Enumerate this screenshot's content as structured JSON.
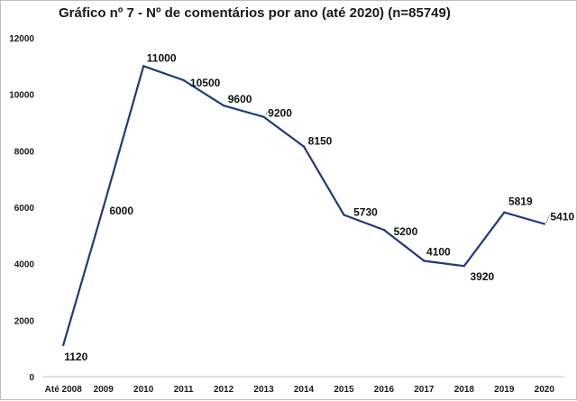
{
  "chart_data": {
    "type": "line",
    "title": "Gráfico nº 7  - Nº de comentários por ano (até 2020) (n=85749)",
    "categories": [
      "Até 2008",
      "2009",
      "2010",
      "2011",
      "2012",
      "2013",
      "2014",
      "2015",
      "2016",
      "2017",
      "2018",
      "2019",
      "2020"
    ],
    "series": [
      {
        "name": "Nº de comentários",
        "values": [
          1120,
          6000,
          11000,
          10500,
          9600,
          9200,
          8150,
          5730,
          5200,
          4100,
          3920,
          5819,
          5410
        ]
      }
    ],
    "data_labels": [
      "1120",
      "6000",
      "11000",
      "10500",
      "9600",
      "9200",
      "8150",
      "5730",
      "5200",
      "4100",
      "3920",
      "5819",
      "5410"
    ],
    "yticks": [
      "0",
      "2000",
      "4000",
      "6000",
      "8000",
      "10000",
      "12000"
    ],
    "ylim": [
      0,
      12000
    ],
    "xlabel": "",
    "ylabel": "",
    "grid": false,
    "line_color": "#1f3a7a"
  }
}
